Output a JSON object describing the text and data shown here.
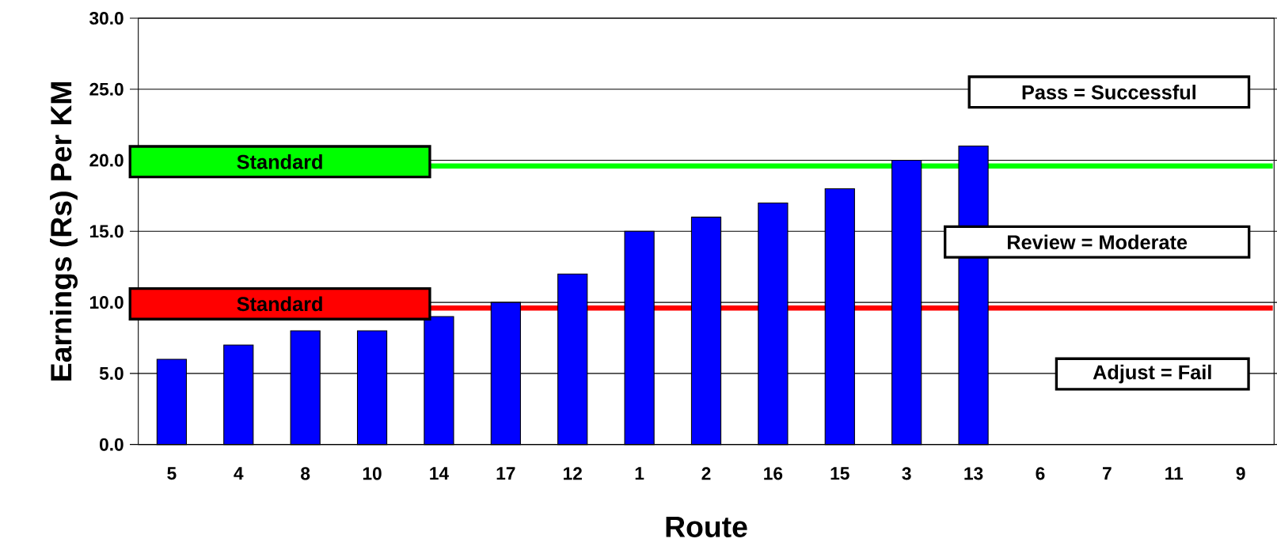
{
  "chart_data": {
    "type": "bar",
    "xlabel": "Route",
    "ylabel": "Earnings (Rs) Per KM",
    "categories": [
      "5",
      "4",
      "8",
      "10",
      "14",
      "17",
      "12",
      "1",
      "2",
      "16",
      "15",
      "3",
      "13",
      "6",
      "7",
      "11",
      "9"
    ],
    "values": [
      6,
      7,
      8,
      8,
      9,
      10,
      12,
      15,
      16,
      17,
      18,
      20,
      21,
      null,
      null,
      null,
      null
    ],
    "color": "#0000ff",
    "ylim": [
      0,
      30
    ],
    "yticks": [
      {
        "value": 0,
        "label": "0.0"
      },
      {
        "value": 5,
        "label": "5.0"
      },
      {
        "value": 10,
        "label": "10.0"
      },
      {
        "value": 15,
        "label": "15.0"
      },
      {
        "value": 20,
        "label": "20.0"
      },
      {
        "value": 25,
        "label": "25.0"
      },
      {
        "value": 30,
        "label": "30.0"
      }
    ],
    "grid": "y",
    "ref_lines": [
      {
        "axis": "y",
        "value": 19.6,
        "label": "Standard",
        "color": "#00ff00"
      },
      {
        "axis": "y",
        "value": 9.6,
        "label": "Standard",
        "color": "#ff0000"
      }
    ],
    "annotations": [
      "Pass = Successful",
      "Review = Moderate",
      "Adjust = Fail"
    ]
  }
}
